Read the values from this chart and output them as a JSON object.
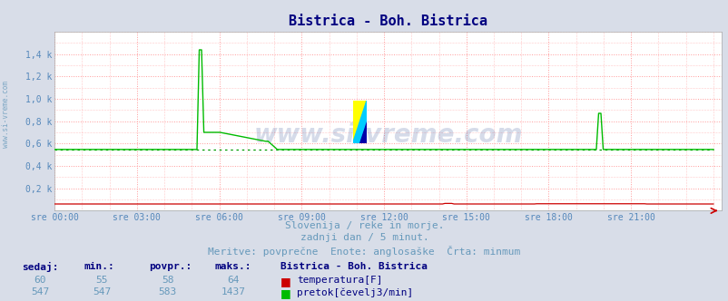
{
  "title": "Bistrica - Boh. Bistrica",
  "title_color": "#000080",
  "bg_color": "#d8dde8",
  "plot_bg_color": "#ffffff",
  "grid_color": "#ff9999",
  "grid_style": ":",
  "xlabel_color": "#5588bb",
  "ylabel_color": "#5588bb",
  "xtick_labels": [
    "sre 00:00",
    "sre 03:00",
    "sre 06:00",
    "sre 09:00",
    "sre 12:00",
    "sre 15:00",
    "sre 18:00",
    "sre 21:00"
  ],
  "ytick_labels": [
    "0,2 k",
    "0,4 k",
    "0,6 k",
    "0,8 k",
    "1,0 k",
    "1,2 k",
    "1,4 k"
  ],
  "ytick_values": [
    200,
    400,
    600,
    800,
    1000,
    1200,
    1400
  ],
  "ymin": 0,
  "ymax": 1600,
  "n_points": 288,
  "temp_color": "#cc0000",
  "flow_color": "#00bb00",
  "flow_min_color": "#009900",
  "watermark_text": "www.si-vreme.com",
  "watermark_color": "#1a3a8a",
  "watermark_alpha": 0.18,
  "footer_line1": "Slovenija / reke in morje.",
  "footer_line2": "zadnji dan / 5 minut.",
  "footer_line3": "Meritve: povprečne  Enote: anglosaške  Črta: minmum",
  "footer_color": "#6699bb",
  "table_header": [
    "sedaj:",
    "min.:",
    "povpr.:",
    "maks.:",
    "Bistrica - Boh. Bistrica"
  ],
  "table_row1": [
    "60",
    "55",
    "58",
    "64",
    "temperatura[F]"
  ],
  "table_row2": [
    "547",
    "547",
    "583",
    "1437",
    "pretok[čevelj3/min]"
  ],
  "table_color": "#000080",
  "temp_value": 60,
  "temp_min": 55,
  "temp_avg": 58,
  "temp_max": 64,
  "flow_value": 547,
  "flow_min": 547,
  "flow_avg": 583,
  "flow_max": 1437
}
